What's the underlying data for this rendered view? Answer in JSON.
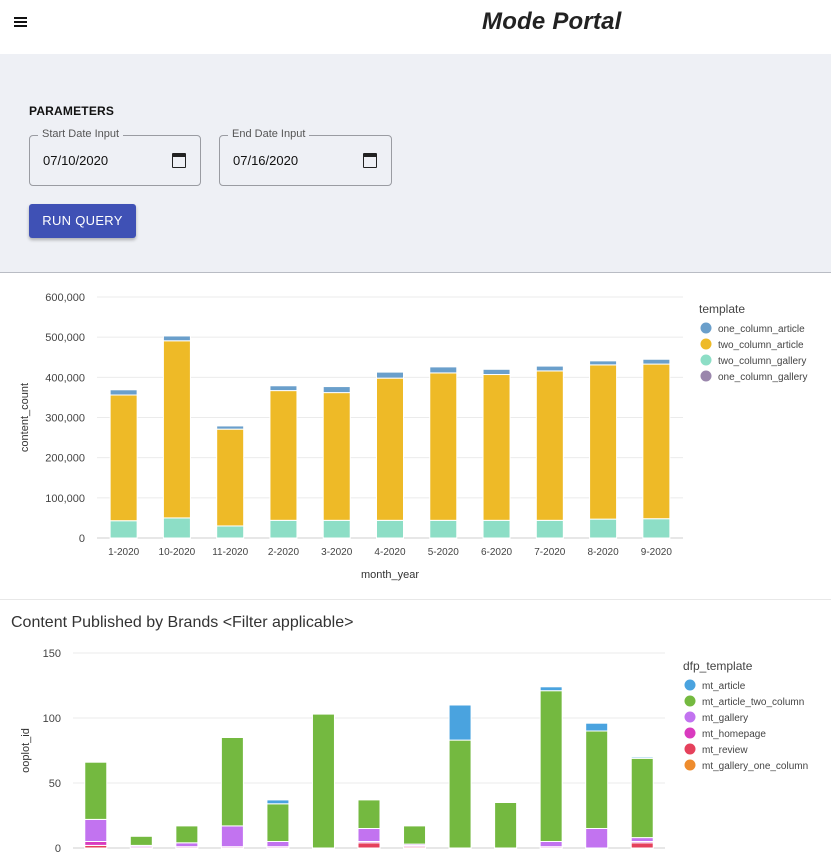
{
  "header": {
    "title": "Mode Portal",
    "menu_icon": "hamburger-menu-icon"
  },
  "parameters": {
    "heading": "PARAMETERS",
    "start_date": {
      "label": "Start Date Input",
      "value": "07/10/2020",
      "icon": "calendar-icon"
    },
    "end_date": {
      "label": "End Date Input",
      "value": "07/16/2020",
      "icon": "calendar-icon"
    },
    "run_button": "RUN QUERY"
  },
  "colors": {
    "accent": "#3f51b5",
    "one_column_article": "#6a9fcb",
    "two_column_article": "#eeba27",
    "two_column_gallery": "#8ddec6",
    "one_column_gallery": "#9a86ac",
    "mt_article": "#4aa3df",
    "mt_article_two_column": "#74b940",
    "mt_gallery": "#c273f0",
    "mt_homepage": "#d93bbf",
    "mt_review": "#e5415c",
    "mt_gallery_one_column": "#ee8c2e"
  },
  "chart_data": [
    {
      "type": "bar",
      "stacked": true,
      "title": "",
      "xlabel": "month_year",
      "ylabel": "content_count",
      "ylim": [
        0,
        600000
      ],
      "yticks": [
        0,
        100000,
        200000,
        300000,
        400000,
        500000,
        600000
      ],
      "ytick_labels": [
        "0",
        "100,000",
        "200,000",
        "300,000",
        "400,000",
        "500,000",
        "600,000"
      ],
      "grid": true,
      "legend_title": "template",
      "legend_position": "right",
      "categories": [
        "1-2020",
        "10-2020",
        "11-2020",
        "2-2020",
        "3-2020",
        "4-2020",
        "5-2020",
        "6-2020",
        "7-2020",
        "8-2020",
        "9-2020"
      ],
      "series": [
        {
          "name": "two_column_gallery",
          "color": "#8ddec6",
          "values": [
            43000,
            50000,
            30000,
            44000,
            44000,
            44000,
            44000,
            44000,
            44000,
            47000,
            48000
          ]
        },
        {
          "name": "two_column_article",
          "color": "#eeba27",
          "values": [
            313000,
            441000,
            241000,
            323000,
            318000,
            354000,
            367000,
            363000,
            372000,
            384000,
            385000
          ]
        },
        {
          "name": "one_column_article",
          "color": "#6a9fcb",
          "values": [
            13000,
            12000,
            8000,
            12000,
            15000,
            15000,
            15000,
            13000,
            12000,
            10000,
            12000
          ]
        },
        {
          "name": "one_column_gallery",
          "color": "#9a86ac",
          "values": [
            0,
            0,
            0,
            0,
            0,
            0,
            0,
            0,
            0,
            0,
            0
          ]
        }
      ],
      "legend_order": [
        "one_column_article",
        "two_column_article",
        "two_column_gallery",
        "one_column_gallery"
      ]
    },
    {
      "type": "bar",
      "stacked": true,
      "title": "Content Published by Brands <Filter applicable>",
      "xlabel": "",
      "ylabel": "ooplot_id",
      "ylim": [
        0,
        150
      ],
      "yticks": [
        0,
        50,
        100,
        150
      ],
      "ytick_labels": [
        "0",
        "50",
        "100",
        "150"
      ],
      "grid": true,
      "legend_title": "dfp_template",
      "legend_position": "right",
      "categories": [
        "",
        "",
        "",
        "",
        "",
        "",
        "",
        "",
        "",
        "",
        "",
        "",
        ""
      ],
      "series": [
        {
          "name": "mt_review",
          "color": "#e5415c",
          "values": [
            2,
            0,
            0,
            0,
            0,
            0,
            4,
            1,
            0,
            0,
            0,
            0,
            4
          ]
        },
        {
          "name": "mt_homepage",
          "color": "#d93bbf",
          "values": [
            3,
            1,
            1,
            1,
            1,
            0,
            1,
            1,
            0,
            0,
            1,
            0,
            1
          ]
        },
        {
          "name": "mt_gallery",
          "color": "#c273f0",
          "values": [
            17,
            1,
            3,
            16,
            4,
            0,
            10,
            1,
            0,
            0,
            4,
            15,
            3
          ]
        },
        {
          "name": "mt_article_two_column",
          "color": "#74b940",
          "values": [
            44,
            7,
            13,
            68,
            29,
            103,
            22,
            14,
            83,
            35,
            116,
            75,
            61
          ]
        },
        {
          "name": "mt_article",
          "color": "#4aa3df",
          "values": [
            0,
            0,
            0,
            0,
            3,
            0,
            0,
            0,
            27,
            0,
            3,
            6,
            1
          ]
        },
        {
          "name": "mt_gallery_one_column",
          "color": "#ee8c2e",
          "values": [
            0,
            0,
            0,
            0,
            0,
            0,
            0,
            0,
            0,
            0,
            0,
            0,
            0
          ]
        }
      ],
      "legend_order": [
        "mt_article",
        "mt_article_two_column",
        "mt_gallery",
        "mt_homepage",
        "mt_review",
        "mt_gallery_one_column"
      ]
    }
  ]
}
